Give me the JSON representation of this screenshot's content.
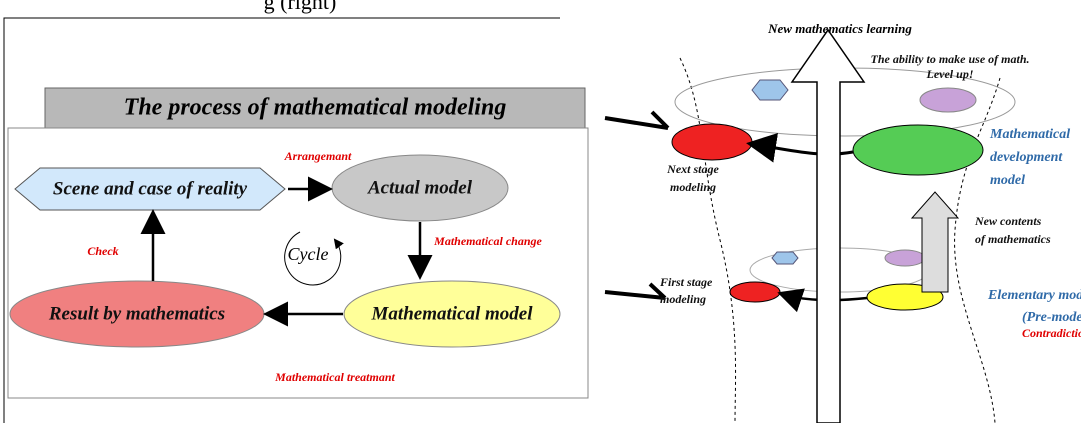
{
  "header": {
    "fragment": "g (right)"
  },
  "left": {
    "title": "The process of mathematical modeling",
    "nodes": [
      {
        "label": "Scene and case of reality"
      },
      {
        "label": "Actual model"
      },
      {
        "label": "Mathematical model"
      },
      {
        "label": "Result by mathematics"
      }
    ],
    "cycle": "Cycle",
    "edges": [
      {
        "label": "Arrangemant"
      },
      {
        "label": "Mathematical change"
      },
      {
        "label": "Mathematical treatmant"
      },
      {
        "label": "Check"
      }
    ]
  },
  "right": {
    "top": "New mathematics learning",
    "level_up": [
      "The ability to make use of math.",
      "Level up!"
    ],
    "development": [
      "Mathematical",
      "development",
      "model"
    ],
    "next_stage": [
      "Next stage",
      "modeling"
    ],
    "new_contents": [
      "New contents",
      "of mathematics"
    ],
    "first_stage": [
      "First stage",
      "modeling"
    ],
    "elementary": [
      "Elementary mode",
      "(Pre-model)"
    ],
    "contradiction": "Contradiction"
  }
}
